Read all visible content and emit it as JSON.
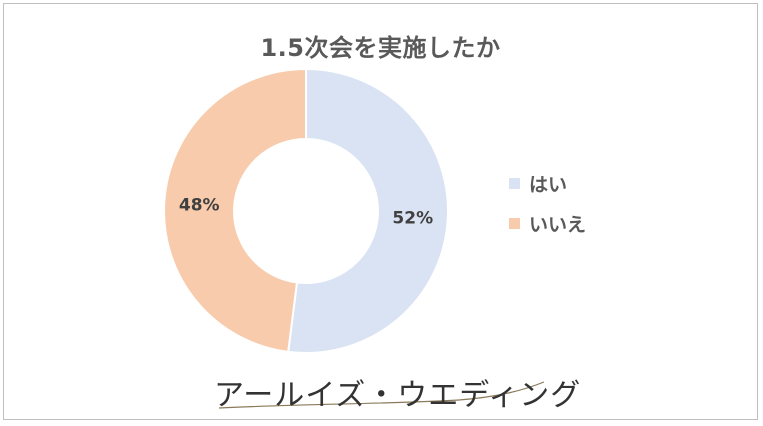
{
  "chart_data": {
    "type": "pie",
    "title": "1.5次会を実施したか",
    "categories": [
      "はい",
      "いいえ"
    ],
    "values": [
      52,
      48
    ],
    "data_labels": [
      "52%",
      "48%"
    ],
    "colors": [
      "#dae3f3",
      "#f8cbad"
    ],
    "donut": true,
    "legend_position": "right"
  },
  "logo": {
    "text": "アールイズ・ウエディング"
  }
}
